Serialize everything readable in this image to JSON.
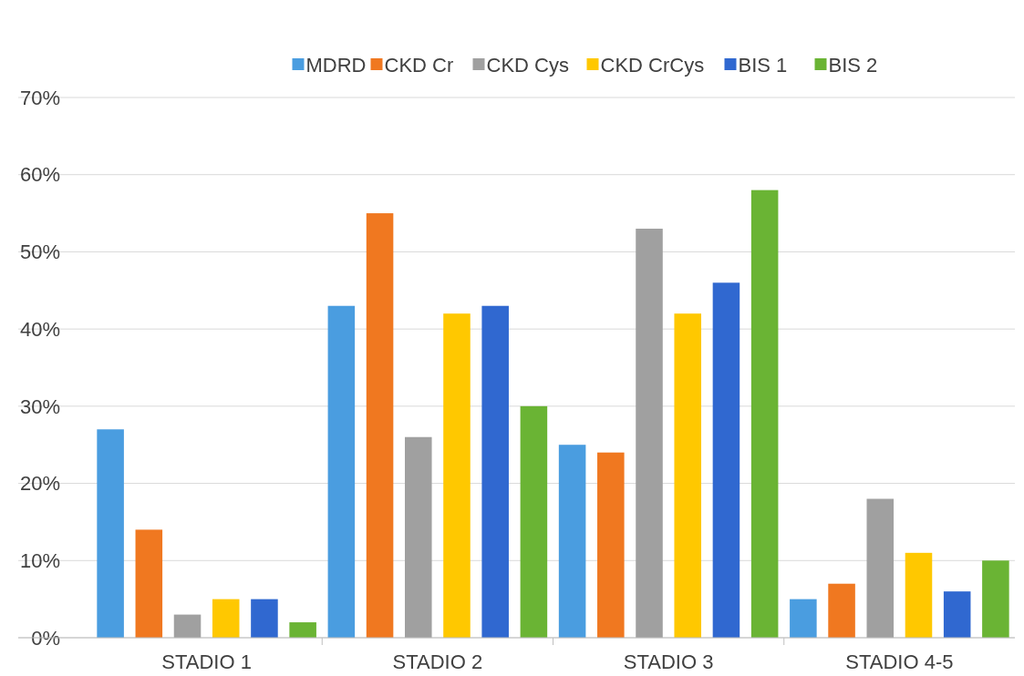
{
  "chart_data": {
    "type": "bar",
    "categories": [
      "STADIO 1",
      "STADIO 2",
      "STADIO 3",
      "STADIO 4-5"
    ],
    "series": [
      {
        "name": "MDRD",
        "color": "#4a9de0",
        "values": [
          27,
          43,
          25,
          5
        ]
      },
      {
        "name": "CKD Cr",
        "color": "#f07820",
        "values": [
          14,
          55,
          24,
          7
        ]
      },
      {
        "name": "CKD Cys",
        "color": "#a0a0a0",
        "values": [
          3,
          26,
          53,
          18
        ]
      },
      {
        "name": "CKD CrCys",
        "color": "#ffc800",
        "values": [
          5,
          42,
          42,
          11
        ]
      },
      {
        "name": "BIS 1",
        "color": "#3068d0",
        "values": [
          5,
          43,
          46,
          6
        ]
      },
      {
        "name": "BIS 2",
        "color": "#6ab434",
        "values": [
          2,
          30,
          58,
          10
        ]
      }
    ],
    "ylim": [
      0,
      70
    ],
    "yticks": [
      {
        "value": 0,
        "label": "0%"
      },
      {
        "value": 10,
        "label": "10%"
      },
      {
        "value": 20,
        "label": "20%"
      },
      {
        "value": 30,
        "label": "30%"
      },
      {
        "value": 40,
        "label": "40%"
      },
      {
        "value": 50,
        "label": "50%"
      },
      {
        "value": 60,
        "label": "60%"
      },
      {
        "value": 70,
        "label": "70%"
      }
    ],
    "grid": "y",
    "legend": "top"
  }
}
